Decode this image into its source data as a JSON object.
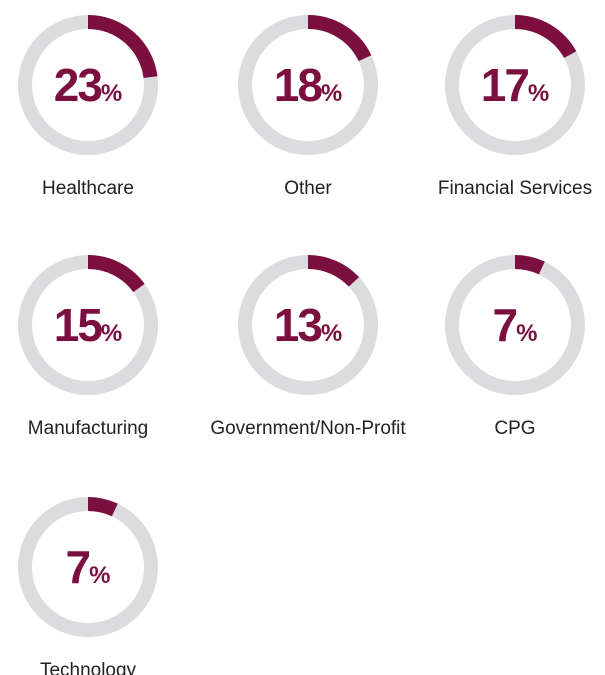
{
  "chart_data": {
    "type": "donut",
    "categories": [
      "Healthcare",
      "Other",
      "Financial Services",
      "Manufacturing",
      "Government/Non-Profit",
      "CPG",
      "Technology"
    ],
    "values": [
      23,
      18,
      17,
      15,
      13,
      7,
      7
    ],
    "unit": "%",
    "ylim": [
      0,
      100
    ],
    "color": "#7b1040",
    "track_color": "#dcdcdf"
  }
}
